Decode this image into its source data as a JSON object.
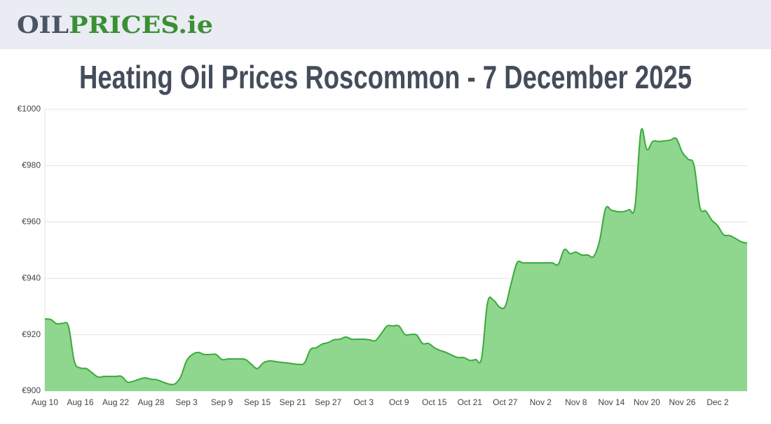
{
  "header": {
    "logo_dark": "OIL",
    "logo_green": "PRICES.ie"
  },
  "chart_data": {
    "type": "area",
    "title": "Heating Oil Prices Roscommon - 7 December 2025",
    "categories": [
      "Aug 10",
      null,
      null,
      null,
      null,
      null,
      "Aug 16",
      null,
      null,
      null,
      null,
      null,
      "Aug 22",
      null,
      null,
      null,
      null,
      null,
      "Aug 28",
      null,
      null,
      null,
      null,
      null,
      "Sep 3",
      null,
      null,
      null,
      null,
      null,
      "Sep 9",
      null,
      null,
      null,
      null,
      null,
      "Sep 15",
      null,
      null,
      null,
      null,
      null,
      "Sep 21",
      null,
      null,
      null,
      null,
      null,
      "Sep 27",
      null,
      null,
      null,
      null,
      null,
      "Oct 3",
      null,
      null,
      null,
      null,
      null,
      "Oct 9",
      null,
      null,
      null,
      null,
      null,
      "Oct 15",
      null,
      null,
      null,
      null,
      null,
      "Oct 21",
      null,
      null,
      null,
      null,
      null,
      "Oct 27",
      null,
      null,
      null,
      null,
      null,
      "Nov 2",
      null,
      null,
      null,
      null,
      null,
      "Nov 8",
      null,
      null,
      null,
      null,
      null,
      "Nov 14",
      null,
      null,
      null,
      null,
      null,
      "Nov 20",
      null,
      null,
      null,
      null,
      null,
      "Nov 26",
      null,
      null,
      null,
      null,
      null,
      "Dec 2",
      null,
      null,
      null,
      null,
      null
    ],
    "values": [
      925.6,
      925.4,
      923.9,
      924,
      923,
      910.5,
      908.2,
      908,
      906.5,
      905,
      905.2,
      905.2,
      905.2,
      905.2,
      903.2,
      903.5,
      904.2,
      904.7,
      904.2,
      904,
      903.2,
      902.5,
      902.5,
      905,
      910.7,
      913,
      913.7,
      913,
      913,
      913,
      911.2,
      911.4,
      911.4,
      911.4,
      911.2,
      909.5,
      908,
      910,
      910.7,
      910.5,
      910.2,
      910,
      909.7,
      909.5,
      910,
      914.7,
      915.4,
      916.7,
      917.2,
      918.2,
      918.4,
      919.2,
      918.4,
      918.4,
      918.4,
      918.2,
      917.9,
      920.4,
      923.1,
      923.1,
      923.1,
      920.1,
      920.1,
      919.9,
      916.9,
      916.9,
      915.4,
      914.4,
      913.7,
      912.7,
      911.9,
      911.9,
      910.9,
      911.2,
      911.7,
      931.3,
      932.3,
      929.9,
      930.1,
      938.1,
      945.5,
      945.5,
      945.5,
      945.5,
      945.5,
      945.5,
      945.5,
      945,
      950.2,
      948.8,
      949.3,
      948.3,
      948.3,
      947.8,
      953.5,
      964.7,
      964.2,
      963.7,
      963.7,
      964.4,
      965.7,
      992.3,
      985.8,
      988.6,
      988.6,
      988.8,
      989.1,
      989.6,
      984.8,
      982.3,
      980.1,
      965.2,
      963.9,
      960.7,
      958.7,
      955.5,
      955.2,
      954.2,
      953,
      952.5
    ],
    "color": "#3aaa3a",
    "fill": "#8fd68f",
    "ylim": [
      900,
      1000
    ],
    "yticks": [
      {
        "value": 900,
        "label": "€900"
      },
      {
        "value": 920,
        "label": "€920"
      },
      {
        "value": 940,
        "label": "€940"
      },
      {
        "value": 960,
        "label": "€960"
      },
      {
        "value": 980,
        "label": "€980"
      },
      {
        "value": 1000,
        "label": "€1000"
      }
    ],
    "grid": true
  }
}
